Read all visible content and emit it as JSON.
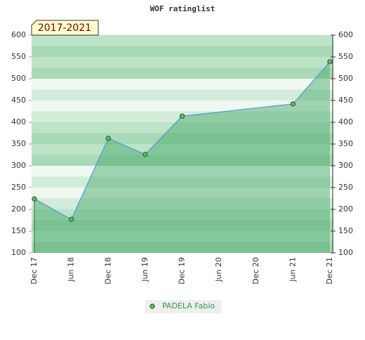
{
  "chart_data": {
    "type": "area",
    "title": "WOF ratinglist",
    "annotation": "2017-2021",
    "categories": [
      "Dec 17",
      "Jun 18",
      "Dec 18",
      "Jun 19",
      "Dec 19",
      "Jun 20",
      "Dec 20",
      "Jun 21",
      "Dec 21"
    ],
    "series": [
      {
        "name": "PADELA Fabio",
        "color": "#5b9bd5",
        "marker_color": "#5cb85c",
        "fill": "#3fa561",
        "x": [
          "Dec 17",
          "Jun 18",
          "Dec 18",
          "Jun 19",
          "Dec 19",
          "Jun 21",
          "Dec 21"
        ],
        "values": [
          224,
          177,
          363,
          326,
          414,
          442,
          539
        ]
      }
    ],
    "ylim": [
      100,
      600
    ],
    "yticks": [
      100,
      150,
      200,
      250,
      300,
      350,
      400,
      450,
      500,
      550,
      600
    ],
    "y2lim": [
      100,
      600
    ],
    "y2ticks": [
      100,
      150,
      200,
      250,
      300,
      350,
      400,
      450,
      500,
      550,
      600
    ],
    "legend": "bottom"
  }
}
